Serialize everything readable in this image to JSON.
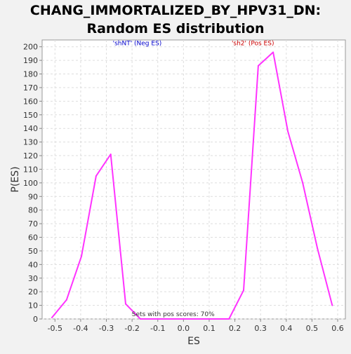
{
  "chart_data": {
    "type": "line",
    "title_lines": [
      "CHANG_IMMORTALIZED_BY_HPV31_DN:",
      "Random ES distribution"
    ],
    "xlabel": "ES",
    "ylabel": "P(ES)",
    "xlim": [
      -0.55,
      0.63
    ],
    "ylim": [
      0,
      205
    ],
    "xticks": [
      -0.5,
      -0.4,
      -0.3,
      -0.2,
      -0.1,
      0.0,
      0.1,
      0.2,
      0.3,
      0.4,
      0.5,
      0.6
    ],
    "xtick_labels": [
      "-0.5",
      "-0.4",
      "-0.3",
      "-0.2",
      "-0.1",
      "0.0",
      "0.1",
      "0.2",
      "0.3",
      "0.4",
      "0.5",
      "0.6"
    ],
    "yticks": [
      0,
      10,
      20,
      30,
      40,
      50,
      60,
      70,
      80,
      90,
      100,
      110,
      120,
      130,
      140,
      150,
      160,
      170,
      180,
      190,
      200
    ],
    "ytick_labels": [
      "0",
      "10",
      "20",
      "30",
      "40",
      "50",
      "60",
      "70",
      "80",
      "90",
      "100",
      "110",
      "120",
      "130",
      "140",
      "150",
      "160",
      "170",
      "180",
      "190",
      "200"
    ],
    "grid": true,
    "series": [
      {
        "color": "#ff33ff",
        "x": [
          -0.512,
          -0.455,
          -0.397,
          -0.34,
          -0.283,
          -0.225,
          -0.168,
          -0.11,
          -0.053,
          0.004,
          0.062,
          0.119,
          0.177,
          0.234,
          0.291,
          0.349,
          0.406,
          0.464,
          0.521,
          0.579
        ],
        "y": [
          1,
          14,
          46,
          105,
          121,
          11,
          0,
          0,
          0,
          0,
          0,
          0,
          0,
          21,
          186,
          196,
          138,
          100,
          52,
          10
        ]
      }
    ],
    "annotations": [
      {
        "text": "'shNT' (Neg ES)",
        "color": "#0000cc",
        "x": -0.18,
        "y": 200
      },
      {
        "text": "'sh2' (Pos ES)",
        "color": "#cc0000",
        "x": 0.27,
        "y": 200
      },
      {
        "text": "Sets with pos scores: 70%",
        "color": "#333333",
        "x": -0.04,
        "y": 1
      }
    ]
  }
}
